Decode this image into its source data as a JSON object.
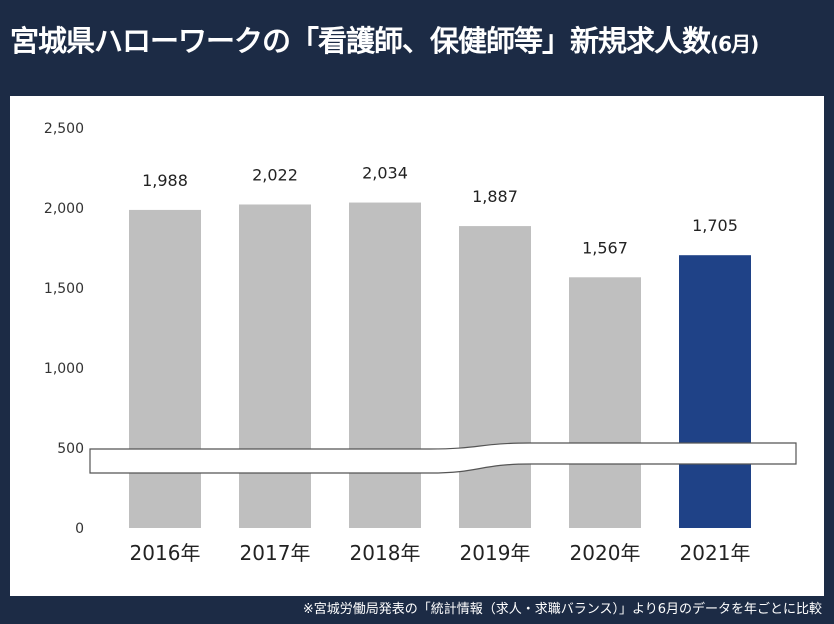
{
  "title": {
    "main": "宮城県ハローワークの「看護師、保健師等」新規求人数",
    "unit": "(6月)"
  },
  "footnote": "※宮城労働局発表の「統計情報（求人・求職バランス）」より6月のデータを年ごとに比較",
  "colors": {
    "background": "#1c2b45",
    "bar": "#bfbfbf",
    "highlight_bar": "#1f4287"
  },
  "chart_data": {
    "type": "bar",
    "categories": [
      "2016年",
      "2017年",
      "2018年",
      "2019年",
      "2020年",
      "2021年"
    ],
    "values": [
      1988,
      2022,
      2034,
      1887,
      1567,
      1705
    ],
    "value_labels": [
      "1,988",
      "2,022",
      "2,034",
      "1,887",
      "1,567",
      "1,705"
    ],
    "highlight_index": 5,
    "yticks": [
      0,
      500,
      1000,
      1500,
      2000,
      2500
    ],
    "ytick_labels": [
      "0",
      "500",
      "1,000",
      "1,500",
      "2,000",
      "2,500"
    ],
    "ylim": [
      0,
      2500
    ],
    "axis_break": true,
    "grid": false,
    "legend": "none",
    "title": "",
    "xlabel": "",
    "ylabel": ""
  }
}
